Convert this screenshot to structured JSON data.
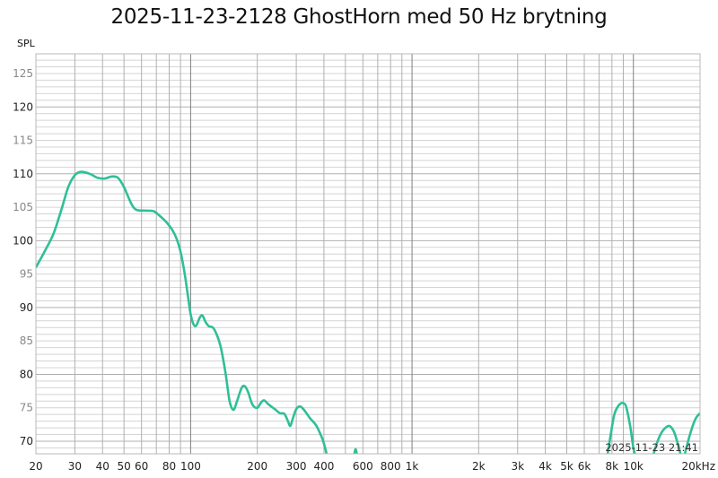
{
  "title": "2025-11-23-2128 GhostHorn med 50 Hz brytning",
  "y_axis_label": "SPL",
  "timestamp": "2025-11-23 21:41",
  "colors": {
    "trace": "#2fbf97",
    "grid_minor": "#d4d4d4",
    "grid_major": "#b0b0b0",
    "grid_decade": "#808080",
    "tick_major": "#222222",
    "tick_minor": "#888888"
  },
  "chart_data": {
    "type": "line",
    "title": "2025-11-23-2128 GhostHorn med 50 Hz brytning",
    "xlabel": "Hz",
    "ylabel": "SPL",
    "x_scale": "log",
    "xlim": [
      20,
      20000
    ],
    "ylim": [
      68,
      128
    ],
    "grid": true,
    "legend": null,
    "x_tick_labels": [
      "20",
      "30",
      "40",
      "50",
      "60",
      "80",
      "100",
      "200",
      "300",
      "400",
      "600",
      "800",
      "1k",
      "2k",
      "3k",
      "4k",
      "5k",
      "6k",
      "8k",
      "10k",
      "20kHz"
    ],
    "x_ticks": [
      20,
      30,
      40,
      50,
      60,
      80,
      100,
      200,
      300,
      400,
      600,
      800,
      1000,
      2000,
      3000,
      4000,
      5000,
      6000,
      8000,
      10000,
      20000
    ],
    "y_ticks": [
      70,
      75,
      80,
      85,
      90,
      95,
      100,
      105,
      110,
      115,
      120,
      125
    ],
    "y_major_ticks": [
      70,
      80,
      90,
      100,
      110,
      120
    ],
    "series": [
      {
        "name": "GhostHorn med 50 Hz brytning",
        "segments": [
          [
            [
              20,
              96
            ],
            [
              22,
              98.5
            ],
            [
              24,
              101
            ],
            [
              26,
              104.5
            ],
            [
              28,
              108
            ],
            [
              30,
              109.8
            ],
            [
              32,
              110.3
            ],
            [
              35,
              110
            ],
            [
              38,
              109.4
            ],
            [
              41,
              109.3
            ],
            [
              44,
              109.6
            ],
            [
              47,
              109.4
            ],
            [
              50,
              108
            ],
            [
              54,
              105.5
            ],
            [
              57,
              104.6
            ],
            [
              62,
              104.5
            ],
            [
              68,
              104.4
            ],
            [
              72,
              103.8
            ],
            [
              78,
              102.7
            ],
            [
              84,
              101.2
            ],
            [
              89,
              99
            ],
            [
              93,
              96
            ],
            [
              97,
              92
            ],
            [
              100,
              89
            ],
            [
              103,
              87.5
            ],
            [
              106,
              87.3
            ],
            [
              110,
              88.5
            ],
            [
              113,
              88.8
            ],
            [
              117,
              87.8
            ],
            [
              121,
              87.2
            ],
            [
              126,
              87
            ],
            [
              131,
              86
            ],
            [
              137,
              84
            ],
            [
              144,
              80
            ],
            [
              150,
              76
            ],
            [
              156,
              74.7
            ],
            [
              162,
              76
            ],
            [
              170,
              78
            ],
            [
              176,
              78.2
            ],
            [
              182,
              77.3
            ],
            [
              190,
              75.5
            ],
            [
              200,
              75
            ],
            [
              208,
              75.8
            ],
            [
              215,
              76.1
            ],
            [
              225,
              75.5
            ],
            [
              240,
              74.8
            ],
            [
              253,
              74.2
            ],
            [
              265,
              74.1
            ],
            [
              275,
              73
            ],
            [
              282,
              72.3
            ],
            [
              290,
              73.5
            ],
            [
              300,
              74.8
            ],
            [
              312,
              75.2
            ],
            [
              325,
              74.7
            ],
            [
              345,
              73.5
            ],
            [
              370,
              72.3
            ],
            [
              392,
              70.5
            ],
            [
              405,
              69
            ],
            [
              415,
              67.5
            ]
          ],
          [
            [
              545,
              67.5
            ],
            [
              552,
              68.5
            ],
            [
              556,
              68.8
            ],
            [
              560,
              68.5
            ],
            [
              566,
              67.5
            ]
          ],
          [
            [
              7600,
              67.5
            ],
            [
              7900,
              71
            ],
            [
              8200,
              74
            ],
            [
              8600,
              75.4
            ],
            [
              9000,
              75.7
            ],
            [
              9300,
              75
            ],
            [
              9700,
              72
            ],
            [
              10000,
              69
            ],
            [
              10300,
              67.5
            ]
          ],
          [
            [
              12200,
              67.5
            ],
            [
              12700,
              69.5
            ],
            [
              13400,
              71.3
            ],
            [
              14200,
              72.2
            ],
            [
              14700,
              72.2
            ],
            [
              15300,
              71.3
            ],
            [
              16000,
              69.2
            ],
            [
              16500,
              67.5
            ]
          ],
          [
            [
              16900,
              67.5
            ],
            [
              17500,
              69.5
            ],
            [
              18400,
              72
            ],
            [
              19200,
              73.5
            ],
            [
              20000,
              74.2
            ]
          ]
        ]
      }
    ]
  }
}
